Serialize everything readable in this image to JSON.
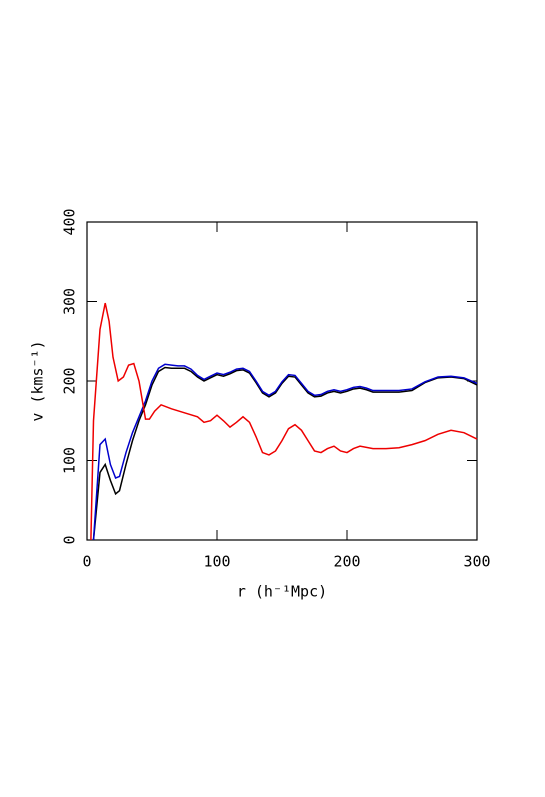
{
  "chart_data": {
    "type": "line",
    "xlabel": "r (h⁻¹Mpc)",
    "ylabel": "v (kms⁻¹)",
    "xlim": [
      0,
      300
    ],
    "ylim": [
      0,
      400
    ],
    "xticks": [
      0,
      100,
      200,
      300
    ],
    "yticks": [
      0,
      100,
      200,
      300,
      400
    ],
    "series": [
      {
        "color": "#000000",
        "x": [
          5,
          10,
          14,
          18,
          22,
          25,
          30,
          35,
          40,
          45,
          50,
          55,
          60,
          65,
          70,
          75,
          80,
          85,
          90,
          95,
          100,
          105,
          110,
          115,
          120,
          125,
          130,
          135,
          140,
          145,
          150,
          155,
          160,
          165,
          170,
          175,
          180,
          185,
          190,
          195,
          200,
          205,
          210,
          215,
          220,
          230,
          240,
          250,
          260,
          270,
          280,
          290,
          300
        ],
        "values": [
          0,
          85,
          95,
          75,
          58,
          62,
          95,
          125,
          150,
          170,
          195,
          212,
          217,
          216,
          216,
          216,
          212,
          205,
          200,
          204,
          208,
          206,
          209,
          213,
          214,
          210,
          198,
          185,
          180,
          185,
          197,
          206,
          205,
          195,
          185,
          180,
          181,
          185,
          187,
          185,
          187,
          190,
          191,
          189,
          186,
          186,
          186,
          188,
          198,
          204,
          205,
          203,
          195
        ]
      },
      {
        "color": "#0000cc",
        "x": [
          5,
          10,
          14,
          18,
          22,
          25,
          30,
          35,
          40,
          45,
          50,
          55,
          60,
          65,
          70,
          75,
          80,
          85,
          90,
          95,
          100,
          105,
          110,
          115,
          120,
          125,
          130,
          135,
          140,
          145,
          150,
          155,
          160,
          165,
          170,
          175,
          180,
          185,
          190,
          195,
          200,
          205,
          210,
          215,
          220,
          230,
          240,
          250,
          260,
          270,
          280,
          290,
          300
        ],
        "values": [
          0,
          120,
          127,
          95,
          78,
          80,
          110,
          135,
          155,
          175,
          200,
          216,
          221,
          220,
          219,
          219,
          215,
          207,
          202,
          206,
          210,
          208,
          211,
          215,
          216,
          212,
          200,
          187,
          182,
          187,
          199,
          208,
          207,
          197,
          187,
          182,
          183,
          187,
          189,
          187,
          189,
          192,
          193,
          191,
          188,
          188,
          188,
          190,
          199,
          205,
          206,
          204,
          197
        ]
      },
      {
        "color": "#ee0000",
        "x": [
          3,
          5,
          10,
          14,
          17,
          20,
          24,
          28,
          32,
          36,
          40,
          45,
          48,
          52,
          57,
          65,
          75,
          85,
          90,
          95,
          100,
          105,
          110,
          115,
          120,
          125,
          130,
          135,
          140,
          145,
          150,
          155,
          160,
          165,
          170,
          175,
          180,
          185,
          190,
          195,
          200,
          205,
          210,
          220,
          230,
          240,
          250,
          260,
          270,
          280,
          290,
          300
        ],
        "values": [
          0,
          150,
          265,
          298,
          275,
          230,
          200,
          205,
          220,
          222,
          200,
          152,
          152,
          162,
          170,
          165,
          160,
          155,
          148,
          150,
          157,
          150,
          142,
          148,
          155,
          148,
          130,
          110,
          107,
          112,
          125,
          140,
          145,
          138,
          125,
          112,
          110,
          115,
          118,
          112,
          110,
          115,
          118,
          115,
          115,
          116,
          120,
          125,
          133,
          138,
          135,
          127
        ]
      }
    ]
  }
}
